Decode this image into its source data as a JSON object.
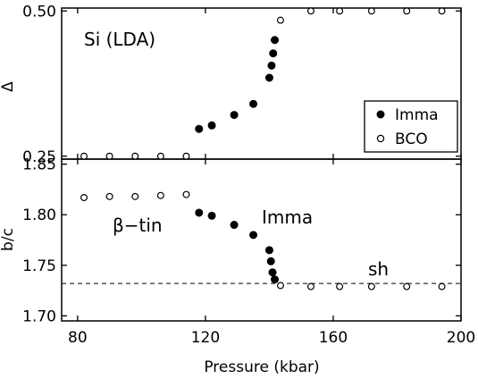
{
  "chart_data": [
    {
      "type": "scatter",
      "ylabel": "Δ",
      "xlim": [
        75,
        200
      ],
      "ylim": [
        0.245,
        0.505
      ],
      "yticks": [
        "0.25",
        "0.50"
      ],
      "yticks_values": [
        0.25,
        0.5
      ],
      "annotations": [
        {
          "text": "Si (LDA)"
        }
      ],
      "legend": {
        "placement": "bottom-right",
        "entries": [
          "Imma",
          "BCO"
        ]
      },
      "series": [
        {
          "name": "Imma",
          "marker": "filled-circle",
          "points": [
            {
              "x": 118,
              "y": 0.297
            },
            {
              "x": 122,
              "y": 0.303
            },
            {
              "x": 129,
              "y": 0.321
            },
            {
              "x": 135,
              "y": 0.34
            },
            {
              "x": 140,
              "y": 0.385
            },
            {
              "x": 140.7,
              "y": 0.406
            },
            {
              "x": 141.2,
              "y": 0.427
            },
            {
              "x": 141.7,
              "y": 0.45
            }
          ]
        },
        {
          "name": "BCO",
          "marker": "open-circle",
          "points": [
            {
              "x": 82,
              "y": 0.25
            },
            {
              "x": 90,
              "y": 0.25
            },
            {
              "x": 98,
              "y": 0.25
            },
            {
              "x": 106,
              "y": 0.25
            },
            {
              "x": 114,
              "y": 0.25
            },
            {
              "x": 143.5,
              "y": 0.484
            },
            {
              "x": 153,
              "y": 0.5
            },
            {
              "x": 162,
              "y": 0.5
            },
            {
              "x": 172,
              "y": 0.5
            },
            {
              "x": 183,
              "y": 0.5
            },
            {
              "x": 194,
              "y": 0.5
            }
          ]
        }
      ]
    },
    {
      "type": "scatter",
      "xlabel": "Pressure (kbar)",
      "ylabel": "b/c",
      "xlim": [
        75,
        200
      ],
      "ylim": [
        1.695,
        1.855
      ],
      "xticks": [
        "80",
        "120",
        "160",
        "200"
      ],
      "xticks_values": [
        80,
        120,
        160,
        200
      ],
      "yticks": [
        "1.70",
        "1.75",
        "1.80",
        "1.85"
      ],
      "yticks_values": [
        1.7,
        1.75,
        1.8,
        1.85
      ],
      "annotations": [
        {
          "text": "β−tin"
        },
        {
          "text": "Imma"
        },
        {
          "text": "sh"
        }
      ],
      "reference_line": {
        "y": 1.732,
        "style": "dashed"
      },
      "series": [
        {
          "name": "Imma",
          "marker": "filled-circle",
          "points": [
            {
              "x": 118,
              "y": 1.802
            },
            {
              "x": 122,
              "y": 1.799
            },
            {
              "x": 129,
              "y": 1.79
            },
            {
              "x": 135,
              "y": 1.78
            },
            {
              "x": 140,
              "y": 1.765
            },
            {
              "x": 140.5,
              "y": 1.754
            },
            {
              "x": 141,
              "y": 1.743
            },
            {
              "x": 141.7,
              "y": 1.736
            }
          ]
        },
        {
          "name": "BCO",
          "marker": "open-circle",
          "points": [
            {
              "x": 82,
              "y": 1.817
            },
            {
              "x": 90,
              "y": 1.818
            },
            {
              "x": 98,
              "y": 1.818
            },
            {
              "x": 106,
              "y": 1.819
            },
            {
              "x": 114,
              "y": 1.82
            },
            {
              "x": 143.5,
              "y": 1.73
            },
            {
              "x": 153,
              "y": 1.729
            },
            {
              "x": 162,
              "y": 1.729
            },
            {
              "x": 172,
              "y": 1.729
            },
            {
              "x": 183,
              "y": 1.729
            },
            {
              "x": 194,
              "y": 1.729
            }
          ]
        }
      ]
    }
  ]
}
